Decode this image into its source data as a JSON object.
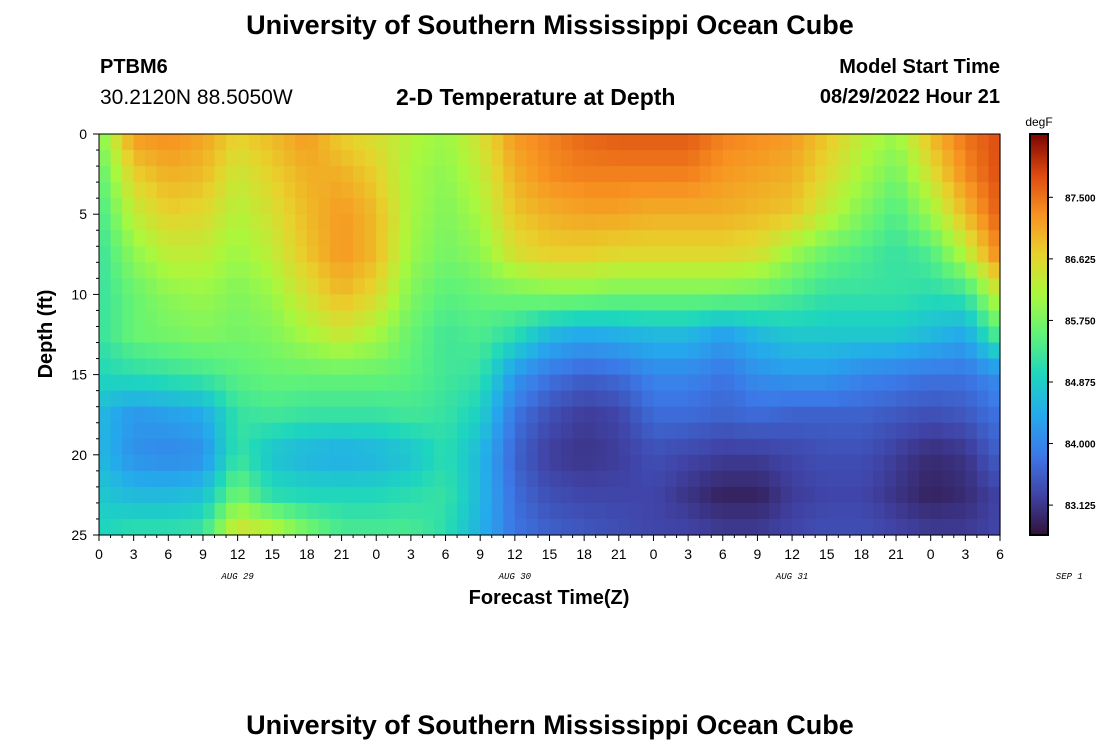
{
  "header": {
    "title": "University of Southern Mississippi Ocean Cube",
    "station_id": "PTBM6",
    "coordinates": "30.2120N  88.5050W",
    "plot_title": "2-D Temperature at Depth",
    "model_start_label": "Model Start Time",
    "model_start_value": "08/29/2022 Hour 21"
  },
  "footer": {
    "title": "University of Southern Mississippi Ocean Cube"
  },
  "chart_data": {
    "type": "heatmap",
    "title": "2-D Temperature at Depth",
    "xlabel": "Forecast Time(Z)",
    "ylabel": "Depth (ft)",
    "x_hours_from_aug29_00z": [
      0,
      3,
      6,
      9,
      12,
      15,
      18,
      21,
      24,
      27,
      30,
      33,
      36,
      39,
      42,
      45,
      48,
      51,
      54,
      57,
      60,
      63,
      66,
      69,
      72,
      75,
      78
    ],
    "x_tick_labels": [
      "0",
      "3",
      "6",
      "9",
      "12",
      "15",
      "18",
      "21",
      "0",
      "3",
      "6",
      "9",
      "12",
      "15",
      "18",
      "21",
      "0",
      "3",
      "6",
      "9",
      "12",
      "15",
      "18",
      "21",
      "0",
      "3",
      "6"
    ],
    "date_labels": [
      {
        "label": "AUG 29",
        "hour": 12
      },
      {
        "label": "AUG 30",
        "hour": 36
      },
      {
        "label": "AUG 31",
        "hour": 60
      },
      {
        "label": "SEP 1",
        "hour": 84
      }
    ],
    "xlim": [
      0,
      78
    ],
    "y_depths_ft": [
      0,
      2.5,
      5,
      7.5,
      10,
      12.5,
      15,
      17.5,
      20,
      22.5,
      25
    ],
    "y_ticks": [
      0,
      5,
      10,
      15,
      20,
      25
    ],
    "ylim": [
      0,
      25
    ],
    "temperature_degF": [
      [
        85.8,
        87.2,
        87.3,
        87.1,
        86.7,
        86.9,
        87.2,
        86.7,
        86.5,
        86.2,
        86.0,
        86.5,
        87.2,
        87.4,
        87.6,
        87.7,
        87.7,
        87.7,
        87.4,
        87.3,
        87.2,
        86.8,
        86.3,
        86.0,
        86.9,
        87.5,
        87.8
      ],
      [
        85.5,
        86.7,
        87.0,
        86.9,
        86.4,
        86.7,
        87.0,
        87.0,
        86.7,
        86.1,
        85.9,
        86.3,
        87.0,
        87.3,
        87.4,
        87.4,
        87.4,
        87.4,
        87.2,
        87.1,
        87.0,
        86.6,
        86.1,
        85.7,
        86.5,
        87.3,
        87.8
      ],
      [
        85.3,
        86.3,
        86.7,
        86.6,
        86.2,
        86.5,
        86.9,
        87.2,
        86.9,
        86.1,
        85.8,
        86.1,
        86.8,
        87.0,
        87.1,
        87.1,
        87.0,
        87.0,
        87.0,
        86.9,
        86.8,
        86.3,
        85.8,
        85.4,
        86.0,
        86.9,
        87.7
      ],
      [
        85.2,
        85.9,
        86.3,
        86.3,
        86.0,
        86.3,
        86.8,
        87.2,
        86.9,
        86.0,
        85.7,
        85.9,
        86.5,
        86.7,
        86.7,
        86.6,
        86.6,
        86.6,
        86.6,
        86.5,
        86.0,
        85.6,
        85.4,
        85.2,
        85.4,
        86.2,
        87.4
      ],
      [
        85.2,
        85.6,
        85.9,
        86.0,
        85.8,
        86.0,
        86.5,
        86.9,
        86.6,
        85.8,
        85.5,
        85.6,
        85.7,
        85.8,
        85.8,
        85.7,
        85.7,
        85.7,
        85.7,
        85.6,
        85.4,
        85.2,
        85.2,
        85.2,
        85.1,
        85.2,
        86.4
      ],
      [
        85.2,
        85.6,
        85.7,
        85.8,
        85.7,
        85.8,
        86.1,
        86.4,
        86.1,
        85.6,
        85.3,
        85.4,
        85.1,
        84.6,
        84.4,
        84.5,
        84.6,
        84.6,
        84.3,
        84.6,
        84.8,
        84.8,
        84.8,
        84.8,
        84.6,
        84.4,
        85.5
      ],
      [
        85.0,
        85.1,
        85.2,
        85.3,
        85.5,
        85.6,
        85.6,
        85.6,
        85.6,
        85.5,
        85.3,
        85.2,
        84.2,
        83.8,
        83.6,
        83.7,
        84.0,
        84.0,
        83.8,
        84.1,
        84.2,
        84.2,
        84.0,
        83.9,
        83.8,
        83.8,
        84.1
      ],
      [
        84.6,
        84.2,
        84.3,
        84.4,
        85.2,
        85.3,
        85.2,
        85.2,
        85.2,
        85.3,
        85.2,
        84.9,
        83.8,
        83.4,
        83.2,
        83.3,
        83.7,
        83.7,
        83.6,
        83.7,
        83.6,
        83.6,
        83.6,
        83.5,
        83.4,
        83.5,
        83.8
      ],
      [
        84.6,
        84.1,
        84.0,
        84.1,
        85.2,
        84.7,
        84.5,
        84.4,
        84.5,
        84.7,
        85.1,
        84.6,
        83.6,
        83.2,
        83.1,
        83.2,
        83.4,
        83.3,
        83.2,
        83.2,
        83.3,
        83.4,
        83.4,
        83.2,
        83.0,
        83.1,
        83.6
      ],
      [
        84.8,
        84.6,
        84.6,
        84.7,
        85.7,
        85.1,
        85.0,
        85.0,
        85.0,
        85.1,
        85.2,
        84.6,
        83.7,
        83.4,
        83.3,
        83.3,
        83.3,
        83.1,
        82.9,
        82.9,
        83.2,
        83.3,
        83.3,
        83.1,
        82.9,
        83.0,
        83.3
      ],
      [
        85.0,
        85.2,
        85.2,
        85.3,
        86.6,
        86.4,
        85.8,
        85.4,
        85.4,
        85.4,
        85.1,
        84.5,
        83.8,
        83.6,
        83.5,
        83.4,
        83.3,
        83.3,
        83.2,
        83.2,
        83.3,
        83.4,
        83.4,
        83.3,
        83.2,
        83.2,
        83.3
      ]
    ],
    "colorbar": {
      "unit": "degF",
      "ticks": [
        83.125,
        84.0,
        84.875,
        85.75,
        86.625,
        87.5
      ],
      "tick_labels": [
        "83.125",
        "84.000",
        "84.875",
        "85.750",
        "86.625",
        "87.500"
      ],
      "range": [
        82.7,
        88.4
      ]
    }
  }
}
